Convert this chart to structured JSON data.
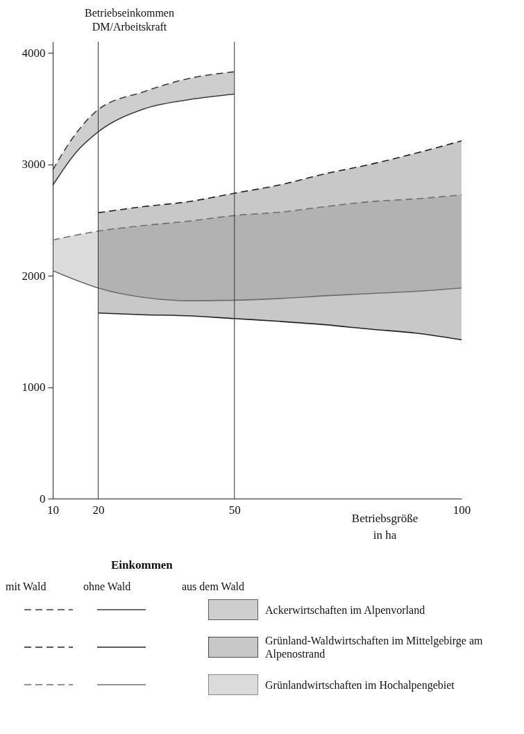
{
  "chart_data": {
    "type": "line",
    "xlabel": "Betriebsgröße in ha",
    "ylabel": "Betriebseinkommen DM/Arbeitskraft",
    "legend_title": "Einkommen",
    "annotations": [
      "mit Wald",
      "ohne Wald",
      "aus dem Wald"
    ],
    "xlim": [
      10,
      100
    ],
    "ylim": [
      0,
      4100
    ],
    "xticks": [
      10,
      20,
      50,
      100
    ],
    "yticks": [
      0,
      1000,
      2000,
      3000,
      4000
    ],
    "legend": "bottom",
    "ref_lines": [
      {
        "axis": "x",
        "value": 20
      },
      {
        "axis": "x",
        "value": 50
      }
    ],
    "series": [
      {
        "name": "Ackerwirtschaften im Alpenvorland",
        "color": "#3c3c3c",
        "line_style": "solid",
        "x": [
          10,
          15,
          20,
          30,
          40,
          50
        ],
        "values": [
          2810,
          3100,
          3290,
          3495,
          3580,
          3630
        ],
        "lower": [
          2810,
          3100,
          3290,
          3495,
          3580,
          3630
        ],
        "upper": [
          2950,
          3270,
          3490,
          3650,
          3770,
          3830
        ]
      },
      {
        "color": "#3c3c3c",
        "line_style": "dashed",
        "x": [
          10,
          15,
          20,
          30,
          40,
          50
        ],
        "values": [
          2950,
          3270,
          3490,
          3650,
          3770,
          3830
        ]
      },
      {
        "name": "Grünland-Waldwirtschaften im Mittelgebirge am Alpenostrand",
        "color": "#222222",
        "line_style": "solid",
        "x": [
          20,
          30,
          40,
          50,
          60,
          70,
          80,
          90,
          100
        ],
        "values": [
          1665,
          1650,
          1640,
          1615,
          1590,
          1560,
          1520,
          1485,
          1425
        ],
        "lower": [
          1665,
          1650,
          1640,
          1615,
          1590,
          1560,
          1520,
          1485,
          1425
        ],
        "upper": [
          2565,
          2620,
          2665,
          2740,
          2815,
          2915,
          3000,
          3100,
          3210
        ]
      },
      {
        "color": "#222222",
        "line_style": "dashed",
        "x": [
          20,
          30,
          40,
          50,
          60,
          70,
          80,
          90,
          100
        ],
        "values": [
          2565,
          2620,
          2665,
          2740,
          2815,
          2915,
          3000,
          3100,
          3210
        ]
      },
      {
        "name": "Grünlandwirtschaften im Hochalpengebiet",
        "color": "#6e6e6e",
        "line_style": "solid",
        "x": [
          10,
          20,
          30,
          40,
          50,
          60,
          70,
          80,
          90,
          100
        ],
        "values": [
          2045,
          1890,
          1805,
          1775,
          1780,
          1795,
          1820,
          1840,
          1860,
          1890
        ],
        "lower": [
          2045,
          1890,
          1805,
          1775,
          1780,
          1795,
          1820,
          1840,
          1860,
          1890
        ],
        "upper": [
          2320,
          2400,
          2450,
          2490,
          2540,
          2570,
          2620,
          2665,
          2690,
          2725
        ]
      },
      {
        "color": "#6e6e6e",
        "line_style": "dashed",
        "x": [
          10,
          20,
          30,
          40,
          50,
          60,
          70,
          80,
          90,
          100
        ],
        "values": [
          2320,
          2400,
          2450,
          2490,
          2540,
          2570,
          2620,
          2665,
          2690,
          2725
        ]
      }
    ]
  }
}
